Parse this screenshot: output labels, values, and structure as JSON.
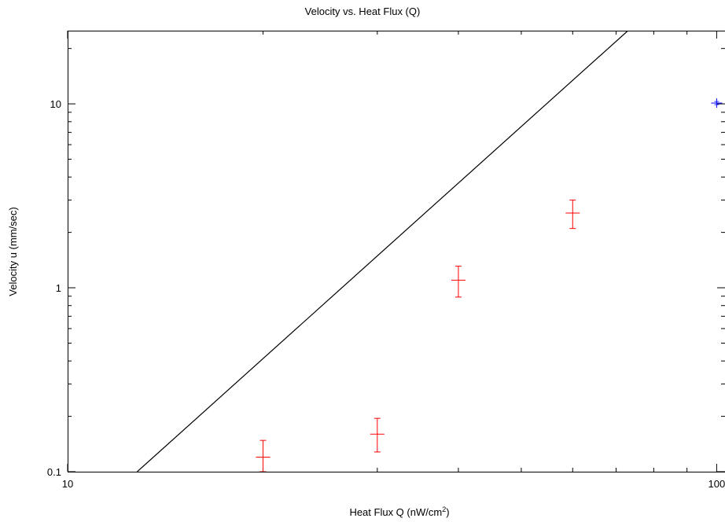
{
  "chart_data": {
    "type": "scatter",
    "title": "Velocity vs. Heat Flux (Q)",
    "xlabel": "Heat Flux Q (nW/cm",
    "xlabel_superscript": "2",
    "xlabel_suffix": ")",
    "ylabel": "Velocity u (mm/sec)",
    "x_scale": "log",
    "y_scale": "log",
    "xlim": [
      10,
      103
    ],
    "ylim": [
      0.1,
      25
    ],
    "grid": false,
    "x_ticks": [
      {
        "value": 10,
        "label": "10"
      },
      {
        "value": 100,
        "label": "100"
      }
    ],
    "y_ticks": [
      {
        "value": 0.1,
        "label": "0.1"
      },
      {
        "value": 1,
        "label": "1"
      },
      {
        "value": 10,
        "label": "10"
      }
    ],
    "series": [
      {
        "kind": "errorbar",
        "color": "#ff0000",
        "points": [
          {
            "x": 20,
            "y": 0.12,
            "ylow": 0.1,
            "yhigh": 0.148
          },
          {
            "x": 30,
            "y": 0.16,
            "ylow": 0.128,
            "yhigh": 0.195
          },
          {
            "x": 40,
            "y": 1.1,
            "ylow": 0.89,
            "yhigh": 1.31
          },
          {
            "x": 60,
            "y": 2.55,
            "ylow": 2.1,
            "yhigh": 3.0
          }
        ]
      },
      {
        "kind": "points",
        "color": "#0000ff",
        "points": [
          {
            "x": 100,
            "y": 10.1
          }
        ]
      },
      {
        "kind": "line",
        "color": "#000000",
        "points": [
          {
            "x": 12.8,
            "y": 0.1
          },
          {
            "x": 73,
            "y": 25
          }
        ]
      }
    ]
  }
}
